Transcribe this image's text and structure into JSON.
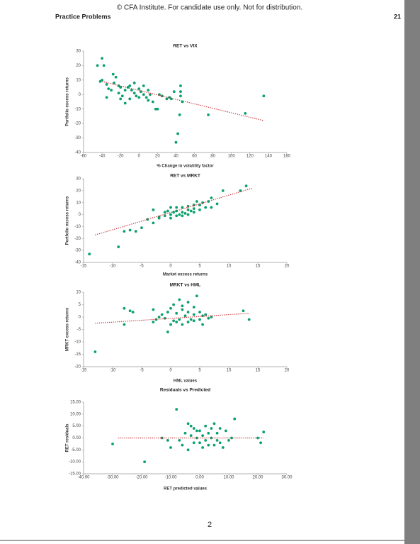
{
  "header": {
    "notice": "© CFA Institute. For candidate use only. Not for distribution.",
    "section": "Practice Problems",
    "page_number": "21"
  },
  "chart_data": [
    {
      "type": "scatter",
      "title": "RET vs VIX",
      "x_label": "% Change in volatility factor",
      "y_label": "Portfolio excess returns",
      "color": "#0aa06e",
      "x": [
        -40,
        -45,
        -38,
        -40,
        -42,
        -35,
        -33,
        -30,
        -28,
        -25,
        -27,
        -22,
        -20,
        -22,
        -18,
        -15,
        -12,
        -10,
        -8,
        -5,
        -3,
        0,
        2,
        5,
        8,
        10,
        12,
        15,
        18,
        20,
        22,
        25,
        30,
        33,
        35,
        38,
        40,
        42,
        44,
        45,
        45,
        45,
        47,
        75,
        115,
        135,
        -35,
        -15,
        -10,
        0,
        5,
        -5,
        10,
        -20
      ],
      "values": [
        25,
        20,
        20,
        10,
        9,
        7,
        4,
        3,
        14,
        12,
        8,
        6,
        5,
        1,
        -1,
        3,
        5,
        6,
        3,
        1,
        -1,
        4,
        2,
        0,
        -2,
        3,
        0,
        -5,
        -10,
        -10,
        0,
        -1,
        -3,
        -2,
        -3,
        2,
        -33,
        -27,
        -14,
        -1,
        2,
        6,
        -5,
        -14,
        -13,
        -1,
        -2,
        -6,
        -3,
        -2,
        6,
        8,
        -4,
        -3
      ],
      "trend": {
        "color": "#c0282d",
        "x": [
          -40,
          135
        ],
        "values": [
          9,
          -18
        ]
      },
      "xlim": [
        -60,
        160
      ],
      "ylim": [
        -40,
        30
      ],
      "xticks": [
        -60,
        -40,
        -20,
        0,
        20,
        40,
        60,
        80,
        100,
        120,
        140,
        160
      ],
      "yticks": [
        -40,
        -30,
        -20,
        -10,
        0,
        10,
        20,
        30
      ]
    },
    {
      "type": "scatter",
      "title": "RET vs MRKT",
      "x_label": "Market excess returns",
      "y_label": "Portfolio excess returns",
      "color": "#0aa06e",
      "x": [
        -14,
        -9,
        -8,
        -7,
        -6,
        -5,
        -4,
        -3,
        -3,
        -2,
        -1,
        0,
        0,
        0.5,
        1,
        1,
        1.5,
        2,
        2,
        2.5,
        3,
        3,
        3.5,
        4,
        4,
        5,
        5,
        5.5,
        6,
        6.5,
        7,
        7,
        8,
        9,
        12,
        13,
        -2,
        -0.5,
        1,
        2,
        3,
        4,
        -1,
        0,
        4.5
      ],
      "values": [
        -33,
        -27,
        -14,
        -13,
        -14,
        -11,
        -4,
        -7,
        4,
        -3,
        -1,
        -3,
        0,
        2,
        -1,
        3,
        0,
        2,
        6,
        1,
        4,
        0,
        3,
        5,
        2,
        8,
        4,
        10,
        6,
        11,
        6,
        14,
        9,
        20,
        20,
        24,
        -2,
        3,
        6,
        -1,
        7,
        8,
        2,
        6,
        11
      ],
      "trend": {
        "color": "#c0282d",
        "x": [
          -13,
          14
        ],
        "values": [
          -17,
          22
        ]
      },
      "xlim": [
        -15,
        20
      ],
      "ylim": [
        -40,
        30
      ],
      "xticks": [
        -15,
        -10,
        -5,
        0,
        5,
        10,
        15,
        20
      ],
      "yticks": [
        -40,
        -30,
        -20,
        -10,
        0,
        10,
        20,
        30
      ]
    },
    {
      "type": "scatter",
      "title": "MRKT vs HML",
      "x_label": "HML values",
      "y_label": "MRKT excess returns",
      "color": "#0aa06e",
      "x": [
        -13,
        -8,
        -8,
        -7,
        -6.5,
        -3,
        -3,
        -2.5,
        -2,
        -1,
        -0.5,
        -0.5,
        0,
        0,
        0.5,
        1,
        1,
        1.5,
        1.5,
        2,
        2,
        2.5,
        3,
        3,
        3.5,
        4,
        4,
        4.5,
        5,
        5.5,
        5.5,
        6,
        6.5,
        7,
        12.5,
        13.5,
        -1.5,
        0.5,
        2,
        3,
        4,
        5
      ],
      "values": [
        -14,
        -3,
        3.5,
        2.5,
        2,
        3,
        -2,
        -1,
        0,
        -0.5,
        -6,
        2,
        3.5,
        -3,
        5,
        -2,
        1.5,
        -1,
        7,
        3,
        -3,
        0.5,
        6,
        2,
        -1,
        4,
        1,
        8.5,
        -1,
        -3,
        0.5,
        1,
        -0.5,
        0,
        2.5,
        -1,
        1,
        -1.5,
        4.5,
        -2,
        -1.5,
        2
      ],
      "trend": {
        "color": "#c0282d",
        "x": [
          -13,
          13.5
        ],
        "values": [
          -2.5,
          1.5
        ]
      },
      "xlim": [
        -15,
        20
      ],
      "ylim": [
        -20,
        10
      ],
      "xticks": [
        -15,
        -10,
        -5,
        0,
        5,
        10,
        15,
        20
      ],
      "yticks": [
        -20,
        -15,
        -10,
        -5,
        0,
        5,
        10
      ]
    },
    {
      "type": "scatter",
      "title": "Residuals vs Predicted",
      "x_label": "RET predicted values",
      "y_label": "RET residuals",
      "color": "#0aa06e",
      "x": [
        -30,
        -19,
        -13,
        -11,
        -10,
        -8,
        -7,
        -6,
        -5,
        -4,
        -3,
        -2,
        -2,
        -1,
        0,
        0,
        1,
        1,
        2,
        2,
        3,
        3,
        4,
        5,
        5,
        6,
        7,
        7,
        8,
        9,
        10,
        11,
        12,
        -4,
        -3,
        -1,
        4,
        6,
        21,
        22,
        20
      ],
      "values": [
        -2.5,
        -10,
        0,
        -1,
        -4,
        12,
        -1,
        -3,
        2,
        6,
        5,
        4,
        -2,
        0,
        3,
        -2,
        1,
        -4,
        5,
        -1,
        2,
        -3,
        0,
        6,
        -3,
        2,
        -2,
        4,
        -4,
        3,
        -1,
        0,
        8,
        -5,
        1,
        3,
        4,
        -1,
        -2,
        2.5,
        0
      ],
      "trend": {
        "color": "#c0282d",
        "x": [
          -28,
          22
        ],
        "values": [
          0,
          0
        ]
      },
      "xlim": [
        -40,
        30
      ],
      "ylim": [
        -15,
        15
      ],
      "xticks": [
        {
          "value": -40,
          "label": "-40.00"
        },
        {
          "value": -30,
          "label": "-30.00"
        },
        {
          "value": -20,
          "label": "-20.00"
        },
        {
          "value": -10,
          "label": "-10.00"
        },
        {
          "value": 0,
          "label": "0.00"
        },
        {
          "value": 10,
          "label": "10.00"
        },
        {
          "value": 20,
          "label": "20.00"
        },
        {
          "value": 30,
          "label": "30.00"
        }
      ],
      "yticks": [
        {
          "value": -15,
          "label": "-15.00"
        },
        {
          "value": -10,
          "label": "-10.00"
        },
        {
          "value": -5,
          "label": "-5.00"
        },
        {
          "value": 0,
          "label": "0.00"
        },
        {
          "value": 5,
          "label": "5.00"
        },
        {
          "value": 10,
          "label": "10.00"
        },
        {
          "value": 15,
          "label": "15.00"
        }
      ]
    }
  ],
  "footer": {
    "page": "2"
  }
}
